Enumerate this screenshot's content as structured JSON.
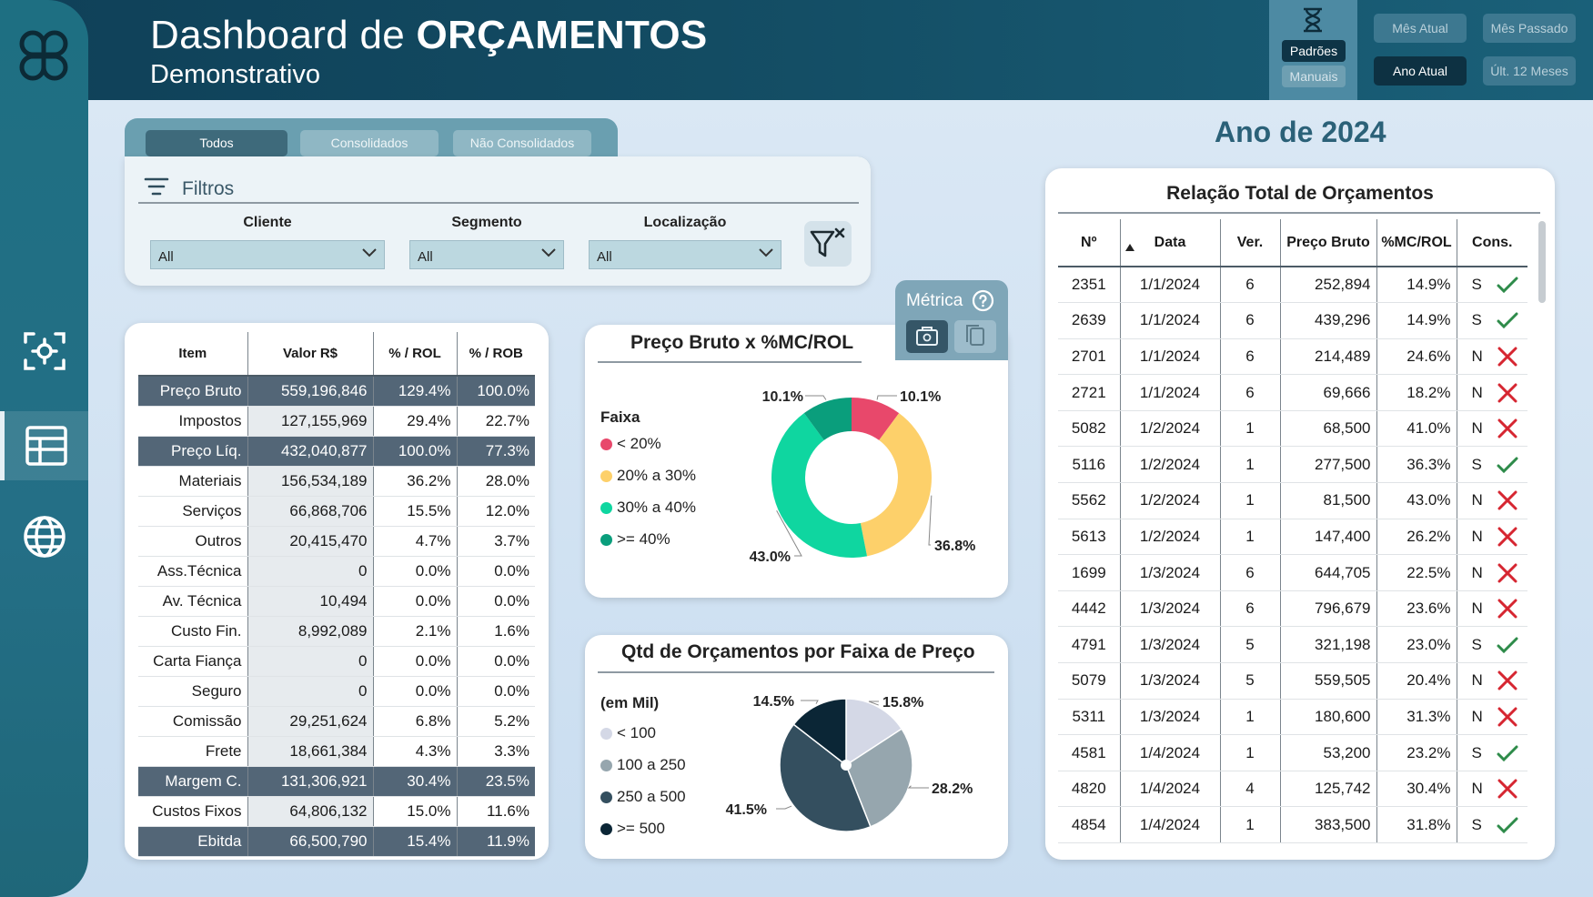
{
  "header": {
    "title_regular": "Dashboard de ",
    "title_bold": "ORÇAMENTOS",
    "subtitle": "Demonstrativo",
    "padroes_label": "Padrões",
    "manuais_label": "Manuais",
    "period_buttons": {
      "mes_atual": "Mês Atual",
      "mes_passado": "Mês Passado",
      "ano_atual": "Ano Atual",
      "ult_12": "Últ. 12 Meses"
    },
    "selected_period": "Ano Atual"
  },
  "sidebar": {
    "items": [
      {
        "icon": "focus-scan-icon"
      },
      {
        "icon": "table-icon",
        "active": true
      },
      {
        "icon": "globe-icon"
      }
    ]
  },
  "tabs": {
    "todos": "Todos",
    "consolidados": "Consolidados",
    "nao_consolidados": "Não Consolidados",
    "selected": "Todos"
  },
  "filters": {
    "label": "Filtros",
    "cliente": {
      "caption": "Cliente",
      "value": "All"
    },
    "segmento": {
      "caption": "Segmento",
      "value": "All"
    },
    "localizacao": {
      "caption": "Localização",
      "value": "All"
    }
  },
  "left_table": {
    "headers": [
      "Item",
      "Valor R$",
      "% / ROL",
      "% / ROB"
    ],
    "rows": [
      {
        "item": "Preço Bruto",
        "valor": "559,196,846",
        "rol": "129.4%",
        "rob": "100.0%",
        "dark": true
      },
      {
        "item": "Impostos",
        "valor": "127,155,969",
        "rol": "29.4%",
        "rob": "22.7%",
        "dark": false
      },
      {
        "item": "Preço Líq.",
        "valor": "432,040,877",
        "rol": "100.0%",
        "rob": "77.3%",
        "dark": true
      },
      {
        "item": "Materiais",
        "valor": "156,534,189",
        "rol": "36.2%",
        "rob": "28.0%",
        "dark": false
      },
      {
        "item": "Serviços",
        "valor": "66,868,706",
        "rol": "15.5%",
        "rob": "12.0%",
        "dark": false
      },
      {
        "item": "Outros",
        "valor": "20,415,470",
        "rol": "4.7%",
        "rob": "3.7%",
        "dark": false
      },
      {
        "item": "Ass.Técnica",
        "valor": "0",
        "rol": "0.0%",
        "rob": "0.0%",
        "dark": false
      },
      {
        "item": "Av. Técnica",
        "valor": "10,494",
        "rol": "0.0%",
        "rob": "0.0%",
        "dark": false
      },
      {
        "item": "Custo Fin.",
        "valor": "8,992,089",
        "rol": "2.1%",
        "rob": "1.6%",
        "dark": false
      },
      {
        "item": "Carta Fiança",
        "valor": "0",
        "rol": "0.0%",
        "rob": "0.0%",
        "dark": false
      },
      {
        "item": "Seguro",
        "valor": "0",
        "rol": "0.0%",
        "rob": "0.0%",
        "dark": false
      },
      {
        "item": "Comissão",
        "valor": "29,251,624",
        "rol": "6.8%",
        "rob": "5.2%",
        "dark": false
      },
      {
        "item": "Frete",
        "valor": "18,661,384",
        "rol": "4.3%",
        "rob": "3.3%",
        "dark": false
      },
      {
        "item": "Margem C.",
        "valor": "131,306,921",
        "rol": "30.4%",
        "rob": "23.5%",
        "dark": true
      },
      {
        "item": "Custos Fixos",
        "valor": "64,806,132",
        "rol": "15.0%",
        "rob": "11.6%",
        "dark": false
      },
      {
        "item": "Ebitda",
        "valor": "66,500,790",
        "rol": "15.4%",
        "rob": "11.9%",
        "dark": true
      }
    ]
  },
  "metric": {
    "label": "Métrica"
  },
  "chart_data": [
    {
      "type": "pie",
      "donut": true,
      "title": "Preço Bruto x %MC/ROL",
      "legend_title": "Faixa",
      "categories": [
        "< 20%",
        "20% a 30%",
        "30% a 40%",
        ">= 40%"
      ],
      "values": [
        10.1,
        36.8,
        43.0,
        10.1
      ],
      "labels": [
        "10.1%",
        "36.8%",
        "43.0%",
        "10.1%"
      ],
      "colors": [
        "#e8486b",
        "#fdd06a",
        "#0fd6a0",
        "#0a9e7c"
      ]
    },
    {
      "type": "pie",
      "donut": false,
      "title": "Qtd de Orçamentos por Faixa de Preço",
      "legend_title": "(em Mil)",
      "categories": [
        "< 100",
        "100 a 250",
        "250 a 500",
        ">= 500"
      ],
      "values": [
        15.8,
        28.2,
        41.5,
        14.5
      ],
      "labels": [
        "15.8%",
        "28.2%",
        "41.5%",
        "14.5%"
      ],
      "colors": [
        "#d4d8e6",
        "#96a6ae",
        "#344f5f",
        "#0b2636"
      ]
    }
  ],
  "right_panel": {
    "year_title": "Ano de 2024",
    "table_title": "Relação Total de Orçamentos",
    "headers": [
      "Nº",
      "Data",
      "Ver.",
      "Preço Bruto",
      "%MC/ROL",
      "Cons."
    ],
    "rows": [
      {
        "n": "2351",
        "data": "1/1/2024",
        "ver": "6",
        "preco": "252,894",
        "mc": "14.9%",
        "cons": "S"
      },
      {
        "n": "2639",
        "data": "1/1/2024",
        "ver": "6",
        "preco": "439,296",
        "mc": "14.9%",
        "cons": "S"
      },
      {
        "n": "2701",
        "data": "1/1/2024",
        "ver": "6",
        "preco": "214,489",
        "mc": "24.6%",
        "cons": "N"
      },
      {
        "n": "2721",
        "data": "1/1/2024",
        "ver": "6",
        "preco": "69,666",
        "mc": "18.2%",
        "cons": "N"
      },
      {
        "n": "5082",
        "data": "1/2/2024",
        "ver": "1",
        "preco": "68,500",
        "mc": "41.0%",
        "cons": "N"
      },
      {
        "n": "5116",
        "data": "1/2/2024",
        "ver": "1",
        "preco": "277,500",
        "mc": "36.3%",
        "cons": "S"
      },
      {
        "n": "5562",
        "data": "1/2/2024",
        "ver": "1",
        "preco": "81,500",
        "mc": "43.0%",
        "cons": "N"
      },
      {
        "n": "5613",
        "data": "1/2/2024",
        "ver": "1",
        "preco": "147,400",
        "mc": "26.2%",
        "cons": "N"
      },
      {
        "n": "1699",
        "data": "1/3/2024",
        "ver": "6",
        "preco": "644,705",
        "mc": "22.5%",
        "cons": "N"
      },
      {
        "n": "4442",
        "data": "1/3/2024",
        "ver": "6",
        "preco": "796,679",
        "mc": "23.6%",
        "cons": "N"
      },
      {
        "n": "4791",
        "data": "1/3/2024",
        "ver": "5",
        "preco": "321,198",
        "mc": "23.0%",
        "cons": "S"
      },
      {
        "n": "5079",
        "data": "1/3/2024",
        "ver": "5",
        "preco": "559,505",
        "mc": "20.4%",
        "cons": "N"
      },
      {
        "n": "5311",
        "data": "1/3/2024",
        "ver": "1",
        "preco": "180,600",
        "mc": "31.3%",
        "cons": "N"
      },
      {
        "n": "4581",
        "data": "1/4/2024",
        "ver": "1",
        "preco": "53,200",
        "mc": "23.2%",
        "cons": "S"
      },
      {
        "n": "4820",
        "data": "1/4/2024",
        "ver": "4",
        "preco": "125,742",
        "mc": "30.4%",
        "cons": "N"
      },
      {
        "n": "4854",
        "data": "1/4/2024",
        "ver": "1",
        "preco": "383,500",
        "mc": "31.8%",
        "cons": "S"
      }
    ],
    "check_color": "#2e8b4a",
    "cross_color": "#d62631"
  },
  "colors": {
    "header_dark": "#0f4058",
    "sidebar": "#1e6f82",
    "dark_row": "#536677"
  }
}
